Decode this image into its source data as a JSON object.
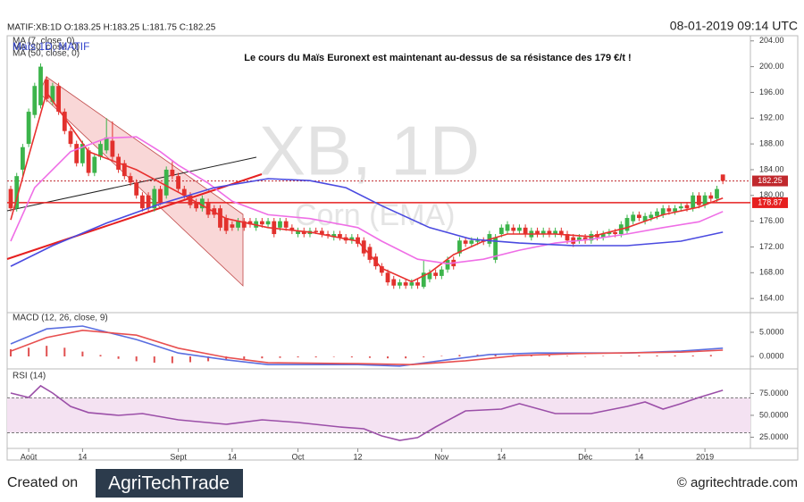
{
  "header": {
    "symbol_line": "MATIF:XB:1D O:183.25 H:183.25 L:181.75 C:182.25",
    "datetime": "08-01-2019 09:14 UTC",
    "footer_left": "Created on",
    "logo": "AgriTechTrade",
    "footer_right": "© agritechtrade.com"
  },
  "chart_data": [
    {
      "type": "candlestick",
      "title": "Le cours du Maïs Euronext est maintenant au-dessus de sa résistance des 179 €/t !",
      "watermark": "XB, 1D",
      "watermark_sub": "Corn (EMA)",
      "instrument_label": "Maïs 1D, MATIF",
      "up_color": "#3cb44b",
      "down_color": "#e2312d",
      "xlim": [
        -0.6,
        123.6
      ],
      "xticks": [
        {
          "value": 3,
          "label": "Août"
        },
        {
          "value": 12,
          "label": "14"
        },
        {
          "value": 28,
          "label": "Sept"
        },
        {
          "value": 37,
          "label": "14"
        },
        {
          "value": 48,
          "label": "Oct"
        },
        {
          "value": 58,
          "label": "12"
        },
        {
          "value": 72,
          "label": "Nov"
        },
        {
          "value": 82,
          "label": "14"
        },
        {
          "value": 96,
          "label": "Déc"
        },
        {
          "value": 105,
          "label": "14"
        },
        {
          "value": 116,
          "label": "2019"
        }
      ],
      "ylim": [
        161.8,
        204.8
      ],
      "yticks": [
        {
          "value": 164,
          "label": "164.00"
        },
        {
          "value": 168,
          "label": "168.00"
        },
        {
          "value": 172,
          "label": "172.00"
        },
        {
          "value": 176,
          "label": "176.00"
        },
        {
          "value": 180,
          "label": "180.00"
        },
        {
          "value": 184,
          "label": "184.00"
        },
        {
          "value": 188,
          "label": "188.00"
        },
        {
          "value": 192,
          "label": "192.00"
        },
        {
          "value": 196,
          "label": "196.00"
        },
        {
          "value": 200,
          "label": "200.00"
        },
        {
          "value": 204,
          "label": "204.00"
        }
      ],
      "last_price": 182.25,
      "last_price_color": "#c0282d",
      "resistance": 178.87,
      "resistance_color": "#e62020",
      "ohlc": [
        [
          181,
          181.5,
          177.5,
          178
        ],
        [
          178,
          183.5,
          177.5,
          183
        ],
        [
          184,
          188,
          183,
          187.5
        ],
        [
          188,
          193.5,
          187.5,
          193
        ],
        [
          192.5,
          197.5,
          192,
          197
        ],
        [
          194,
          200.5,
          193.5,
          200
        ],
        [
          198,
          198.5,
          194.5,
          195
        ],
        [
          194.5,
          197.5,
          194,
          197
        ],
        [
          197,
          197.5,
          192.5,
          193
        ],
        [
          193,
          193.5,
          189.5,
          190
        ],
        [
          190,
          190.5,
          187.5,
          188
        ],
        [
          188,
          188.5,
          184.5,
          185
        ],
        [
          185,
          188.5,
          184.5,
          188
        ],
        [
          187,
          187.5,
          183,
          183.5
        ],
        [
          183.5,
          186.5,
          183,
          186
        ],
        [
          186,
          188.5,
          185.5,
          188
        ],
        [
          187,
          192,
          186.5,
          189
        ],
        [
          188.5,
          191.5,
          185.5,
          186
        ],
        [
          186,
          186.5,
          183.5,
          184
        ],
        [
          185,
          185.5,
          182.5,
          183
        ],
        [
          183,
          183.5,
          181.5,
          182
        ],
        [
          182,
          182.5,
          179.5,
          180
        ],
        [
          180,
          180.5,
          177.5,
          178
        ],
        [
          180,
          180.5,
          177.5,
          178
        ],
        [
          178,
          181.5,
          177.5,
          181
        ],
        [
          181,
          181.5,
          178.5,
          179
        ],
        [
          180,
          184.5,
          179.5,
          184
        ],
        [
          184,
          185.5,
          182.5,
          183
        ],
        [
          183,
          183.5,
          180.5,
          181
        ],
        [
          181,
          181.5,
          179.5,
          180
        ],
        [
          180,
          180.5,
          178,
          178.5
        ],
        [
          179,
          179.5,
          177.5,
          178
        ],
        [
          178,
          180,
          177.5,
          179.5
        ],
        [
          179,
          179.5,
          176.5,
          177
        ],
        [
          178,
          178.5,
          176.5,
          177
        ],
        [
          178,
          178.5,
          174.5,
          175
        ],
        [
          176.5,
          177,
          174,
          174.5
        ],
        [
          175.5,
          176,
          174.5,
          175
        ],
        [
          175,
          176.5,
          174.5,
          176
        ],
        [
          176,
          176.5,
          174.5,
          175
        ],
        [
          176,
          176.5,
          175,
          175.5
        ],
        [
          175,
          176.5,
          174.5,
          176
        ],
        [
          176,
          176.5,
          175,
          175.5
        ],
        [
          175.5,
          176.5,
          175,
          176
        ],
        [
          176,
          176.5,
          173.5,
          174
        ],
        [
          175,
          176.5,
          174.5,
          176
        ],
        [
          176,
          176.5,
          174.5,
          175
        ],
        [
          175,
          175.5,
          174,
          174.5
        ],
        [
          174,
          175,
          173.5,
          174.5
        ],
        [
          174.5,
          175,
          173.5,
          174
        ],
        [
          174,
          175,
          173.5,
          174.5
        ],
        [
          174.5,
          175,
          174,
          174.3
        ],
        [
          174.5,
          175,
          173.5,
          174
        ],
        [
          174,
          174.5,
          173.3,
          173.8
        ],
        [
          173.5,
          174.5,
          173,
          174
        ],
        [
          174,
          174.5,
          173,
          173.5
        ],
        [
          173.5,
          174,
          172.5,
          173
        ],
        [
          173,
          174,
          172.5,
          173.5
        ],
        [
          173.5,
          174,
          172,
          172.5
        ],
        [
          173,
          173.5,
          170.5,
          171
        ],
        [
          172,
          172.5,
          169.5,
          170
        ],
        [
          170.5,
          171,
          168.5,
          169
        ],
        [
          169,
          169.5,
          167.5,
          168
        ],
        [
          168,
          168.5,
          166,
          166.5
        ],
        [
          167,
          167.5,
          165.5,
          166
        ],
        [
          166,
          167,
          165.5,
          166.5
        ],
        [
          166.5,
          167,
          165.5,
          166
        ],
        [
          166,
          167,
          165.5,
          166.5
        ],
        [
          166.5,
          167,
          165.5,
          166
        ],
        [
          165.8,
          170,
          165.5,
          168
        ],
        [
          167,
          168.5,
          166.5,
          168
        ],
        [
          168,
          168.5,
          167,
          167.5
        ],
        [
          167.5,
          169,
          167,
          168.5
        ],
        [
          168.5,
          170.5,
          168,
          170
        ],
        [
          170,
          170.5,
          168.5,
          169
        ],
        [
          171,
          173.5,
          170.5,
          173
        ],
        [
          173,
          173.5,
          172,
          172.5
        ],
        [
          172.5,
          173.5,
          172,
          173
        ],
        [
          172.8,
          173.5,
          172.3,
          173
        ],
        [
          173,
          173.5,
          172.3,
          172.8
        ],
        [
          172.5,
          174.5,
          172,
          174
        ],
        [
          170,
          174,
          169.5,
          173.5
        ],
        [
          174,
          175.5,
          173.5,
          175
        ],
        [
          174.5,
          176,
          174,
          175.5
        ],
        [
          175,
          175.5,
          174,
          174.5
        ],
        [
          174.5,
          175.5,
          174,
          175
        ],
        [
          175,
          175.5,
          173.5,
          174
        ],
        [
          173.5,
          175,
          173,
          174.5
        ],
        [
          174.5,
          175,
          173.5,
          174
        ],
        [
          174,
          175,
          173.5,
          174.5
        ],
        [
          174.5,
          175,
          173.5,
          174
        ],
        [
          174,
          175,
          173.5,
          174.5
        ],
        [
          174.5,
          175,
          173.5,
          174
        ],
        [
          174,
          174.5,
          172.5,
          173
        ],
        [
          173.5,
          174,
          172,
          172.5
        ],
        [
          173,
          174,
          172.5,
          173.5
        ],
        [
          173.5,
          174,
          172.5,
          173
        ],
        [
          173,
          174.5,
          172.5,
          174
        ],
        [
          174,
          174.5,
          173,
          173.5
        ],
        [
          173.5,
          174.5,
          173,
          174
        ],
        [
          174,
          174.8,
          173.5,
          174.3
        ],
        [
          174.3,
          174.8,
          173.5,
          174
        ],
        [
          174,
          176,
          173.5,
          175.5
        ],
        [
          174.5,
          177,
          174,
          176.5
        ],
        [
          176,
          177.5,
          175.5,
          177
        ],
        [
          177,
          177.5,
          176,
          176.5
        ],
        [
          176,
          177.3,
          175.5,
          176.8
        ],
        [
          176.5,
          177.5,
          176,
          177
        ],
        [
          176.8,
          178,
          176.3,
          177.5
        ],
        [
          177,
          178.5,
          176.5,
          178
        ],
        [
          178,
          178.5,
          177,
          177.5
        ],
        [
          177.5,
          178.5,
          177,
          178
        ],
        [
          178,
          178.8,
          177.5,
          178.3
        ],
        [
          178.5,
          179,
          177.5,
          178
        ],
        [
          178,
          180.5,
          177.5,
          180
        ],
        [
          180,
          180.5,
          178,
          178.5
        ],
        [
          178.5,
          180.5,
          178,
          180
        ],
        [
          180,
          180.5,
          179,
          179.5
        ],
        [
          179.5,
          181.5,
          179,
          181
        ],
        [
          183.25,
          183.25,
          181.75,
          182.25
        ]
      ],
      "lines": [
        {
          "name": "MA (7, close, 0)",
          "color": "#e8312f",
          "x": [
            0,
            6,
            13,
            21,
            28,
            36,
            43,
            50,
            58,
            62,
            67,
            70,
            74,
            79,
            83,
            91,
            97,
            103,
            109,
            115,
            119
          ],
          "values": [
            176.2,
            196,
            186.8,
            184,
            180.5,
            176.4,
            175,
            174.3,
            172.9,
            168.7,
            166.6,
            168,
            170.8,
            172.9,
            174,
            174,
            173.6,
            175,
            177,
            178.2,
            179.6
          ]
        },
        {
          "name": "MA (20, close, 0)",
          "color": "#ef6ee6",
          "x": [
            0,
            4,
            10,
            16,
            21,
            25,
            28,
            33,
            37,
            43,
            50,
            58,
            62,
            68,
            73,
            79,
            85,
            91,
            97,
            103,
            109,
            115,
            119
          ],
          "values": [
            172.9,
            181.2,
            186.8,
            188.9,
            189.1,
            186.8,
            184.7,
            181.9,
            179.1,
            177,
            176.4,
            175,
            172.9,
            170.1,
            169.4,
            170.1,
            171.5,
            172.6,
            173.2,
            174,
            175,
            175.9,
            177.5
          ]
        },
        {
          "name": "MA (50, close, 0)",
          "color": "#4a4ae0",
          "x": [
            0,
            7,
            16,
            25,
            34,
            43,
            50,
            56,
            62,
            70,
            77,
            85,
            94,
            103,
            112,
            119
          ],
          "values": [
            169,
            172.2,
            175.7,
            178.7,
            181.2,
            182.6,
            182.3,
            181.2,
            178.4,
            175,
            173.2,
            172.6,
            172.2,
            172.2,
            172.9,
            174.3
          ]
        }
      ]
    },
    {
      "type": "macd",
      "label": "MACD (12, 26, close, 9)",
      "xlim": [
        -0.6,
        123.6
      ],
      "ylim": [
        -2.4,
        9.07
      ],
      "yticks": [
        {
          "value": 0,
          "label": "0.0000"
        },
        {
          "value": 5,
          "label": "5.0000"
        }
      ],
      "histogram": {
        "color": "#e05050",
        "x": [
          0,
          3,
          6,
          9,
          12,
          15,
          18,
          21,
          24,
          27,
          30,
          33,
          36,
          39,
          42,
          45,
          48,
          51,
          54,
          57,
          60,
          63,
          66,
          69,
          72,
          75,
          78,
          81,
          84,
          87,
          90,
          93,
          96,
          99,
          102,
          105,
          108,
          111,
          114,
          117
        ],
        "values": [
          1.5,
          1.8,
          2.2,
          1.8,
          1.0,
          0.3,
          -0.5,
          -1.0,
          -1.3,
          -1.4,
          -1.2,
          -1.0,
          -0.8,
          -0.6,
          -0.4,
          -0.3,
          -0.2,
          -0.2,
          -0.1,
          -0.2,
          -0.3,
          -0.4,
          -0.4,
          -0.2,
          0.1,
          0.3,
          0.4,
          0.4,
          0.3,
          0.2,
          0.2,
          0.1,
          0,
          0.1,
          0.1,
          0.2,
          0.2,
          0.2,
          0.2,
          0.3
        ]
      },
      "lines": [
        {
          "color": "#5a6ee0",
          "x": [
            0,
            6,
            12,
            21,
            28,
            36,
            43,
            58,
            65,
            73,
            80,
            88,
            103,
            112,
            119
          ],
          "values": [
            2.6,
            5.7,
            6.3,
            3.5,
            0.7,
            -0.7,
            -1.7,
            -1.7,
            -2,
            -0.7,
            0.4,
            0.7,
            0.7,
            1.1,
            1.7
          ]
        },
        {
          "color": "#e85050",
          "x": [
            0,
            6,
            12,
            21,
            28,
            36,
            43,
            58,
            67,
            76,
            85,
            95,
            112,
            119
          ],
          "values": [
            1.1,
            3.9,
            5.4,
            4.4,
            1.7,
            -0.2,
            -1.3,
            -1.5,
            -1.7,
            -0.9,
            0.2,
            0.6,
            0.9,
            1.3
          ]
        }
      ]
    },
    {
      "type": "rsi",
      "label": "RSI (14)",
      "xlim": [
        -0.6,
        123.6
      ],
      "ylim": [
        12.2,
        102
      ],
      "band": [
        30,
        70
      ],
      "band_color": "#f4e2f2",
      "yticks": [
        {
          "value": 25,
          "label": "25.0000"
        },
        {
          "value": 50,
          "label": "50.0000"
        },
        {
          "value": 75,
          "label": "75.0000"
        }
      ],
      "lines": [
        {
          "color": "#9b4fa8",
          "x": [
            0,
            3,
            5,
            7,
            10,
            13,
            18,
            22,
            28,
            36,
            42,
            48,
            55,
            59,
            62,
            65,
            68,
            71,
            76,
            82,
            85,
            91,
            97,
            103,
            106,
            109,
            112,
            115,
            119
          ],
          "values": [
            75.5,
            70.4,
            83.7,
            75.5,
            60.2,
            53.1,
            50,
            52,
            44.9,
            39.8,
            44.9,
            41.8,
            36.7,
            34.7,
            26.5,
            21.4,
            24.5,
            36.7,
            55.1,
            57.1,
            63.3,
            52,
            52,
            60.2,
            65.3,
            57.1,
            63.3,
            70.4,
            78.6
          ]
        }
      ]
    }
  ]
}
